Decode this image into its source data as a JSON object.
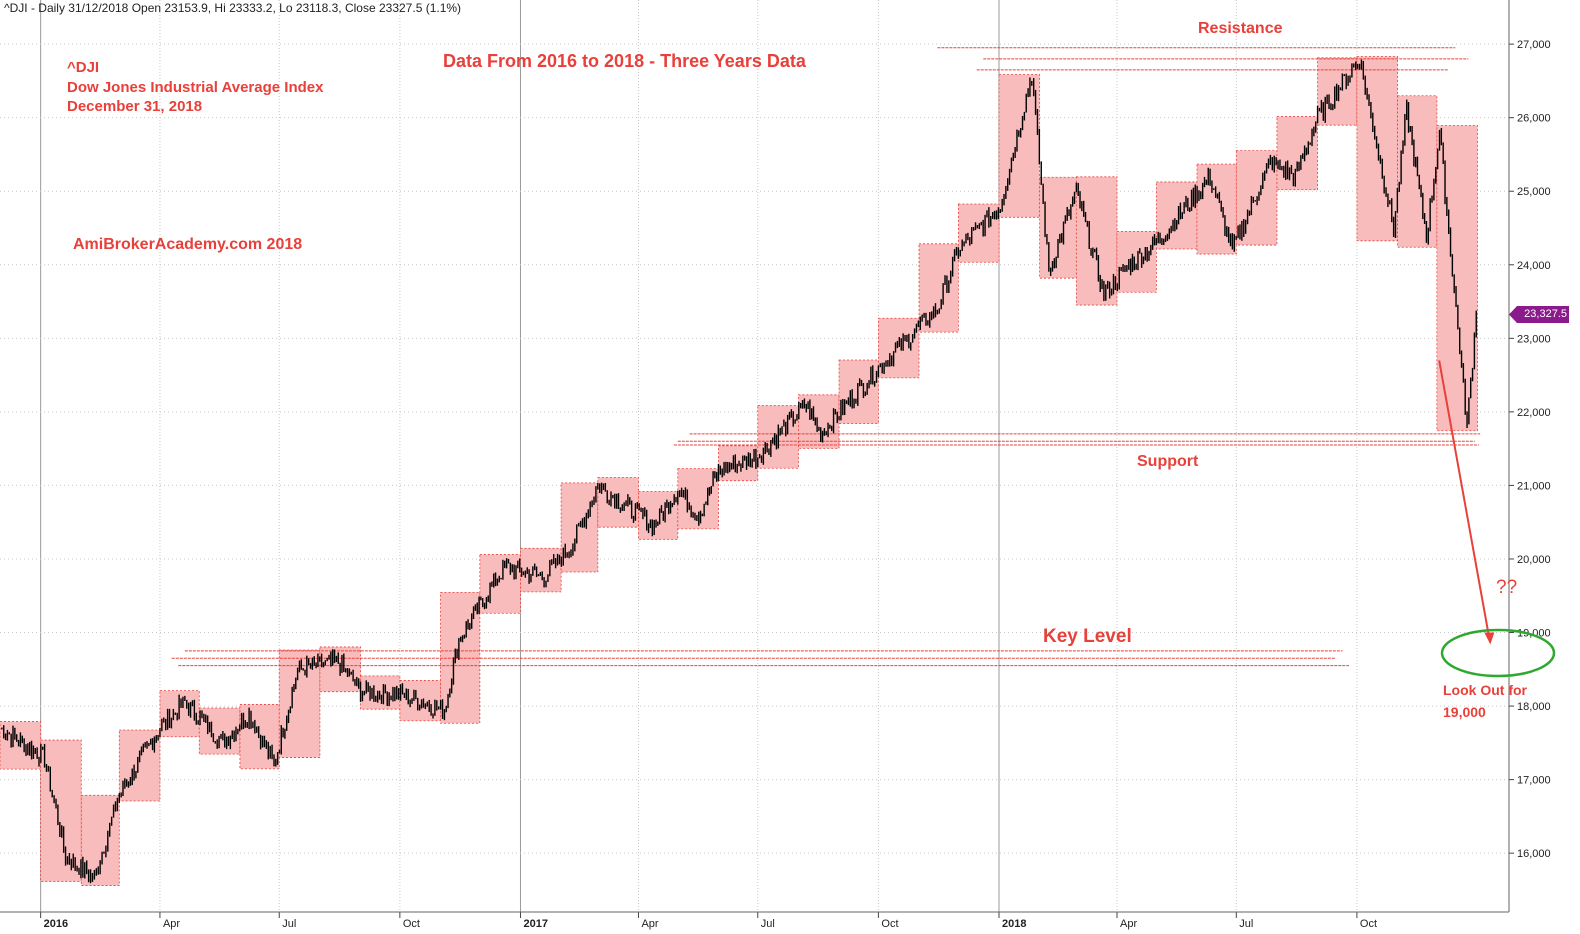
{
  "header": "^DJI - Daily 31/12/2018 Open 23153.9, Hi 23333.2, Lo 23118.3, Close 23327.5 (1.1%)",
  "annotations": {
    "ticker": "^DJI",
    "index_name": "Dow Jones Industrial Average Index",
    "date": "December 31, 2018",
    "title": "Data From 2016 to 2018 - Three Years Data",
    "source": "AmiBrokerAcademy.com  2018",
    "resistance": "Resistance",
    "support": "Support",
    "key_level": "Key Level",
    "question": "??",
    "lookout": "Look Out for",
    "lookout_value": "19,000"
  },
  "last_price_label": "23,327.5",
  "colors": {
    "annotation": "#e8403a",
    "box_fill": "#f9bcbc",
    "candle": "#000000",
    "grid": "#c8c8c8",
    "price_tag": "#8b1a8b",
    "ellipse": "#2fa82f"
  },
  "chart_data": {
    "type": "line",
    "x_ticks": [
      "2016",
      "Apr",
      "Jul",
      "Oct",
      "2017",
      "Apr",
      "Jul",
      "Oct",
      "2018",
      "Apr",
      "Jul",
      "Oct"
    ],
    "y_ticks": [
      "16,000",
      "17,000",
      "18,000",
      "19,000",
      "20,000",
      "21,000",
      "22,000",
      "23,000",
      "24,000",
      "25,000",
      "26,000",
      "27,000"
    ],
    "ylim": [
      15200,
      27600
    ],
    "grid": true,
    "series": [
      {
        "x": [
          "2015-12-01",
          "2016-01-04",
          "2016-01-20",
          "2016-02-11",
          "2016-03-01",
          "2016-04-01",
          "2016-04-20",
          "2016-05-19",
          "2016-06-08",
          "2016-06-27",
          "2016-07-15",
          "2016-08-15",
          "2016-09-01",
          "2016-10-03",
          "2016-11-04",
          "2016-11-15",
          "2016-12-20",
          "2017-01-19",
          "2017-02-10",
          "2017-03-01",
          "2017-04-13",
          "2017-05-01",
          "2017-05-17",
          "2017-06-01",
          "2017-07-01",
          "2017-08-07",
          "2017-08-18",
          "2017-09-01",
          "2017-10-01",
          "2017-11-15",
          "2017-12-01",
          "2018-01-02",
          "2018-01-26",
          "2018-02-08",
          "2018-03-01",
          "2018-03-22",
          "2018-04-10",
          "2018-05-01",
          "2018-06-11",
          "2018-06-28",
          "2018-07-27",
          "2018-08-15",
          "2018-09-01",
          "2018-10-03",
          "2018-10-29",
          "2018-11-08",
          "2018-11-23",
          "2018-12-03",
          "2018-12-24",
          "2018-12-31"
        ],
        "y": [
          17700,
          17300,
          15950,
          15660,
          16800,
          17700,
          18050,
          17500,
          17900,
          17200,
          18500,
          18600,
          18200,
          18150,
          17950,
          18900,
          19900,
          19750,
          20200,
          21000,
          20450,
          20950,
          20600,
          21200,
          21400,
          22100,
          21700,
          22000,
          22600,
          23400,
          24200,
          24800,
          26600,
          23900,
          25000,
          23600,
          24000,
          24300,
          25200,
          24200,
          25400,
          25200,
          26000,
          26800,
          24500,
          26100,
          24400,
          25800,
          21800,
          23327.5
        ]
      }
    ],
    "zones": {
      "resistance": [
        26950,
        26800,
        26650
      ],
      "support": [
        21700,
        21600,
        21550
      ],
      "key_level": [
        18750,
        18650,
        18550
      ],
      "target": 19000
    }
  }
}
